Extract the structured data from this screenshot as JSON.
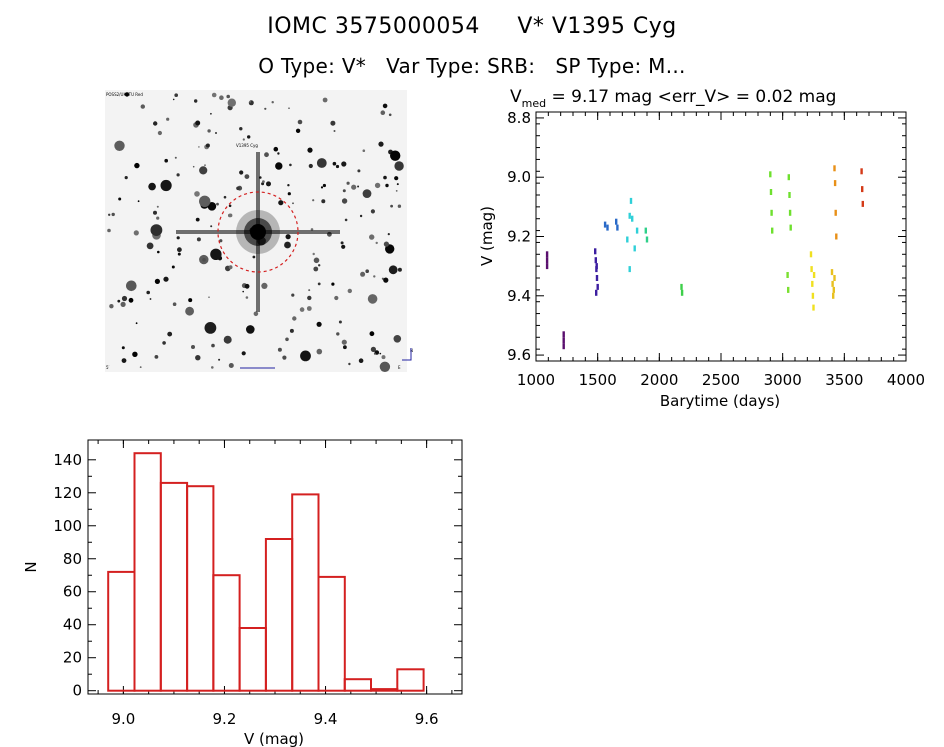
{
  "header": {
    "id_label": "IOMC 3575000054",
    "star_name": "V* V1395 Cyg",
    "otype": "O Type: V*",
    "vartype": "Var Type: SRB:",
    "sptype": "SP Type: M..."
  },
  "image_panel": {
    "tiny_labels": [
      "POSS2/UKSTU Red",
      "V1395 Cyg",
      "5′",
      "N",
      "E"
    ]
  },
  "stats": {
    "vmed_symbol": "V",
    "vmed_subscript": "med",
    "vmed_text": "= 9.17 mag",
    "err_text": "<err_V> = 0.02 mag"
  },
  "colors": {
    "hist_bar": "#d42020",
    "circle": "#d42020"
  },
  "chart_data": [
    {
      "type": "scatter",
      "title": "",
      "xlabel": "Barytime (days)",
      "ylabel": "V (mag)",
      "xlim": [
        1000,
        4000
      ],
      "ylim": [
        9.62,
        8.78
      ],
      "y_inverted": true,
      "xticks": [
        1000,
        1500,
        2000,
        2500,
        3000,
        3500,
        4000
      ],
      "yticks": [
        "8.8",
        "9.0",
        "9.2",
        "9.4",
        "9.6"
      ],
      "yticks_values": [
        8.8,
        9.0,
        9.2,
        9.4,
        9.6
      ],
      "series": [
        {
          "color": "#5a0f6e",
          "x": [
            1090,
            1090,
            1090
          ],
          "y": [
            9.26,
            9.28,
            9.3
          ]
        },
        {
          "color": "#5a0f6e",
          "x": [
            1225,
            1225,
            1225
          ],
          "y": [
            9.53,
            9.55,
            9.57
          ]
        },
        {
          "color": "#3c1ea0",
          "x": [
            1480,
            1485,
            1490,
            1495,
            1500,
            1488,
            1492
          ],
          "y": [
            9.25,
            9.28,
            9.31,
            9.34,
            9.37,
            9.39,
            9.3
          ]
        },
        {
          "color": "#2a6ac8",
          "x": [
            1560,
            1580,
            1650,
            1660
          ],
          "y": [
            9.16,
            9.17,
            9.15,
            9.17
          ]
        },
        {
          "color": "#2fd0d8",
          "x": [
            1740,
            1760,
            1770,
            1780,
            1800,
            1820,
            1760
          ],
          "y": [
            9.21,
            9.13,
            9.08,
            9.14,
            9.24,
            9.18,
            9.31
          ]
        },
        {
          "color": "#2fd08a",
          "x": [
            1890,
            1900
          ],
          "y": [
            9.18,
            9.21
          ]
        },
        {
          "color": "#3ecf4a",
          "x": [
            2180,
            2185
          ],
          "y": [
            9.37,
            9.39
          ]
        },
        {
          "color": "#6ee02e",
          "x": [
            2900,
            2905,
            2910,
            2915
          ],
          "y": [
            8.99,
            9.05,
            9.12,
            9.18
          ]
        },
        {
          "color": "#6ee02e",
          "x": [
            3050,
            3055,
            3060,
            3065
          ],
          "y": [
            9.0,
            9.06,
            9.12,
            9.17
          ]
        },
        {
          "color": "#7ae030",
          "x": [
            3040,
            3045
          ],
          "y": [
            9.33,
            9.38
          ]
        },
        {
          "color": "#f0e020",
          "x": [
            3230,
            3235,
            3240,
            3245,
            3250,
            3255
          ],
          "y": [
            9.26,
            9.31,
            9.36,
            9.4,
            9.44,
            9.33
          ]
        },
        {
          "color": "#e8c020",
          "x": [
            3400,
            3405,
            3410,
            3415,
            3420
          ],
          "y": [
            9.32,
            9.36,
            9.4,
            9.38,
            9.34
          ]
        },
        {
          "color": "#e89018",
          "x": [
            3420,
            3425,
            3430,
            3435
          ],
          "y": [
            8.97,
            9.02,
            9.12,
            9.2
          ]
        },
        {
          "color": "#d43a18",
          "x": [
            3640,
            3645,
            3650
          ],
          "y": [
            8.98,
            9.04,
            9.09
          ]
        }
      ]
    },
    {
      "type": "bar",
      "title": "",
      "xlabel": "V (mag)",
      "ylabel": "N",
      "xlim": [
        8.93,
        9.67
      ],
      "ylim": [
        -2,
        152
      ],
      "xticks": [
        "9.0",
        "9.2",
        "9.4",
        "9.6"
      ],
      "xticks_values": [
        9.0,
        9.2,
        9.4,
        9.6
      ],
      "yticks": [
        "0",
        "20",
        "40",
        "60",
        "80",
        "100",
        "120",
        "140"
      ],
      "yticks_values": [
        0,
        20,
        40,
        60,
        80,
        100,
        120,
        140
      ],
      "bin_width": 0.052,
      "bin_starts": [
        8.97,
        9.022,
        9.074,
        9.126,
        9.178,
        9.23,
        9.282,
        9.334,
        9.386,
        9.438,
        9.49,
        9.542
      ],
      "values": [
        72,
        144,
        126,
        124,
        70,
        38,
        92,
        119,
        69,
        7,
        1,
        13
      ]
    }
  ]
}
